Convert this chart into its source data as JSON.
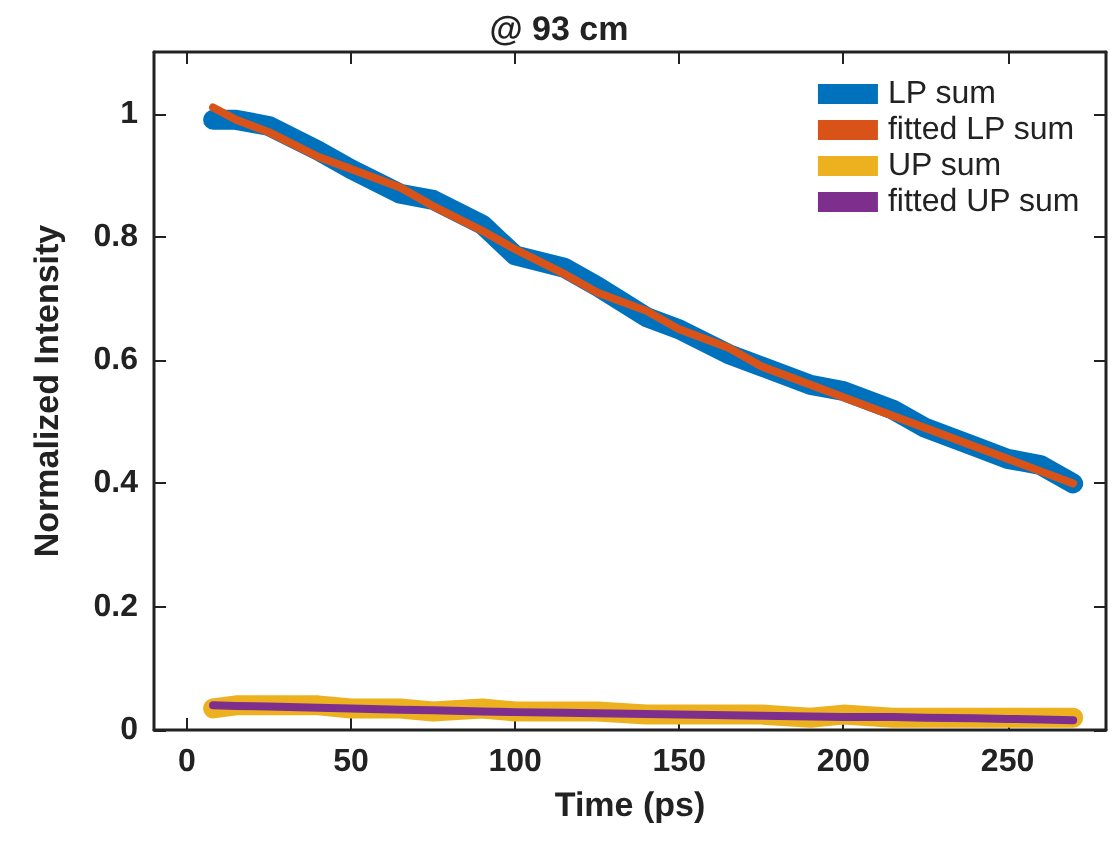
{
  "chart_data": {
    "type": "line",
    "title": "@ 93 cm",
    "xlabel": "Time (ps)",
    "ylabel": "Normalized Intensity",
    "xlim": [
      -10,
      280
    ],
    "xticks": [
      0,
      50,
      100,
      150,
      200,
      250
    ],
    "ylim": [
      0,
      1.1
    ],
    "yticks": [
      0,
      0.2,
      0.4,
      0.6,
      0.8,
      1
    ],
    "x": [
      8,
      15,
      25,
      40,
      50,
      65,
      75,
      90,
      100,
      115,
      125,
      140,
      150,
      165,
      175,
      190,
      200,
      215,
      225,
      240,
      250,
      260,
      270
    ],
    "series": [
      {
        "name": "LP sum",
        "color": "#0072bd",
        "values": [
          0.99,
          0.99,
          0.98,
          0.94,
          0.91,
          0.87,
          0.86,
          0.82,
          0.77,
          0.75,
          0.72,
          0.67,
          0.65,
          0.61,
          0.59,
          0.56,
          0.55,
          0.52,
          0.49,
          0.46,
          0.44,
          0.43,
          0.4
        ]
      },
      {
        "name": "fitted LP sum",
        "color": "#d95319",
        "values": [
          1.01,
          0.99,
          0.97,
          0.93,
          0.91,
          0.88,
          0.85,
          0.81,
          0.78,
          0.74,
          0.71,
          0.68,
          0.65,
          0.62,
          0.59,
          0.56,
          0.54,
          0.51,
          0.49,
          0.46,
          0.44,
          0.42,
          0.4
        ]
      },
      {
        "name": "UP sum",
        "color": "#edb120",
        "values": [
          0.035,
          0.04,
          0.04,
          0.04,
          0.035,
          0.035,
          0.03,
          0.035,
          0.03,
          0.03,
          0.03,
          0.025,
          0.025,
          0.025,
          0.025,
          0.02,
          0.025,
          0.02,
          0.02,
          0.02,
          0.02,
          0.02,
          0.02
        ]
      },
      {
        "name": "fitted UP sum",
        "color": "#7e2f8e",
        "values": [
          0.04,
          0.039,
          0.038,
          0.036,
          0.035,
          0.033,
          0.032,
          0.03,
          0.029,
          0.028,
          0.027,
          0.026,
          0.025,
          0.024,
          0.023,
          0.022,
          0.021,
          0.021,
          0.02,
          0.019,
          0.018,
          0.017,
          0.016
        ]
      }
    ],
    "legend": "top right",
    "grid": false,
    "marker": "none",
    "line_style": "solid"
  }
}
